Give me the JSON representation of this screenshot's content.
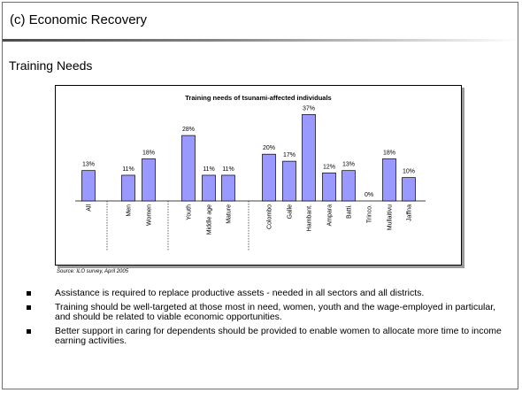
{
  "slide": {
    "title": "(c) Economic Recovery",
    "subtitle": "Training Needs",
    "source": "Source: ILO survey, April 2005",
    "bullets": [
      "Assistance is required to replace productive assets -  needed in all sectors and all districts.",
      "Training should be well-targeted at those most in need, women, youth and the wage-employed in particular, and should be related to viable economic opportunities.",
      "Better support in caring for dependents should be provided to enable women to allocate more time to income earning activities."
    ]
  },
  "chart_data": {
    "type": "bar",
    "title": "Training needs of tsunami-affected individuals",
    "categories": [
      "All",
      "Men",
      "Women",
      "Youth",
      "Middle age",
      "Mature",
      "Colombo",
      "Galle",
      "Hambant.",
      "Ampara",
      "Batti.",
      "Trinco.",
      "Mullaitivu",
      "Jaffna"
    ],
    "values": [
      13,
      11,
      18,
      28,
      11,
      11,
      20,
      17,
      37,
      12,
      13,
      0,
      18,
      10
    ],
    "value_labels": [
      "13%",
      "11%",
      "18%",
      "28%",
      "11%",
      "11%",
      "20%",
      "17%",
      "37%",
      "12%",
      "13%",
      "0%",
      "18%",
      "10%"
    ],
    "groups": [
      [
        0
      ],
      [
        1,
        2
      ],
      [
        3,
        4,
        5
      ],
      [
        6,
        7,
        8,
        9,
        10,
        11,
        12,
        13
      ]
    ],
    "ylim": [
      0,
      40
    ],
    "bar_color": "#9999ff",
    "grid": false,
    "legend": "none"
  }
}
